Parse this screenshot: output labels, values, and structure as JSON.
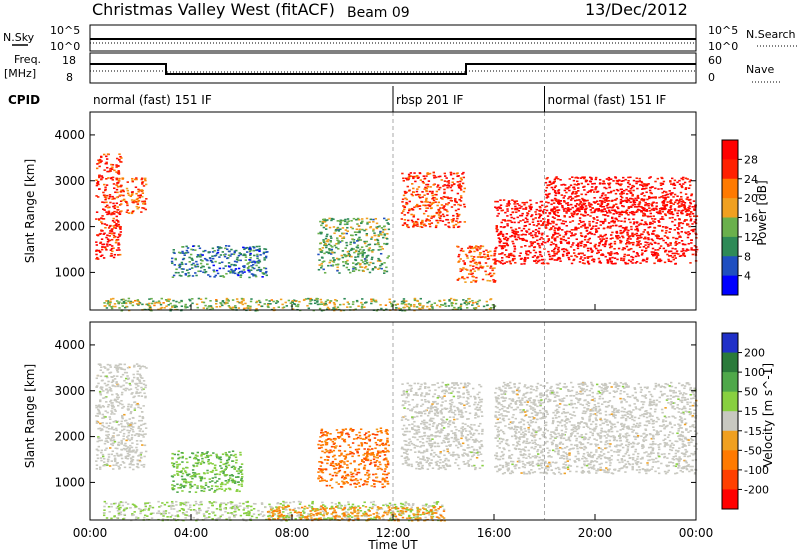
{
  "header": {
    "title": "Christmas Valley West (fitACF)",
    "beam": "Beam 09",
    "date": "13/Dec/2012"
  },
  "aux": {
    "nsky_label": "N.Sky",
    "nsearch_label": "N.Search",
    "freq_label_line1": "Freq.",
    "freq_label_line2": "[MHz]",
    "nave_label": "Nave",
    "cpid_label": "CPID",
    "noise_ticks_left": [
      "10^5",
      "10^0"
    ],
    "noise_ticks_right": [
      "10^5",
      "10^0"
    ],
    "freq_ticks": [
      "18",
      "8"
    ],
    "nave_ticks": [
      "60",
      "0"
    ]
  },
  "cpid_segments": [
    {
      "label": "normal (fast) 151 IF",
      "start_hr": 0
    },
    {
      "label": "rbsp 201 IF",
      "start_hr": 12.0
    },
    {
      "label": "normal (fast) 151 IF",
      "start_hr": 18.0
    }
  ],
  "colors": {
    "power_scale": [
      "#0000ff",
      "#1f4fc0",
      "#2e8a57",
      "#6ab04c",
      "#f0a020",
      "#ff7a00",
      "#ff2000",
      "#ff0000"
    ],
    "velocity_scale": [
      "#2030c8",
      "#2a7a3a",
      "#4fa84a",
      "#88d040",
      "#c8c8c0",
      "#f0a020",
      "#ff7a00",
      "#ff4000",
      "#ff0000"
    ],
    "ground_scatter": "#c8c8c0"
  },
  "chart_data": [
    {
      "type": "heatmap",
      "name": "power",
      "xlabel": "",
      "ylabel": "Slant Range [km]",
      "xlim_hr": [
        0,
        24
      ],
      "ylim_km": [
        180,
        4500
      ],
      "yticks": [
        "4000",
        "3000",
        "2000",
        "1000"
      ],
      "colorbar_label": "Power [dB]",
      "colorbar_ticks": [
        "28",
        "24",
        "20",
        "16",
        "12",
        "8",
        "4"
      ],
      "colorbar_range": [
        0,
        30
      ],
      "regions": [
        {
          "t0": 0.2,
          "t1": 1.2,
          "r0": 1300,
          "r1": 3600,
          "level": 26
        },
        {
          "t0": 1.0,
          "t1": 2.2,
          "r0": 2300,
          "r1": 3100,
          "level": 22
        },
        {
          "t0": 3.2,
          "t1": 7.0,
          "r0": 900,
          "r1": 1600,
          "level": 8
        },
        {
          "t0": 9.0,
          "t1": 11.8,
          "r0": 1000,
          "r1": 2200,
          "level": 12
        },
        {
          "t0": 12.3,
          "t1": 14.8,
          "r0": 2000,
          "r1": 3200,
          "level": 24
        },
        {
          "t0": 14.5,
          "t1": 16.0,
          "r0": 800,
          "r1": 1600,
          "level": 22
        },
        {
          "t0": 16.0,
          "t1": 24.0,
          "r0": 1200,
          "r1": 2600,
          "level": 28
        },
        {
          "t0": 18.0,
          "t1": 23.8,
          "r0": 2300,
          "r1": 3100,
          "level": 28
        },
        {
          "t0": 0.5,
          "t1": 16.0,
          "r0": 180,
          "r1": 450,
          "level": 14
        }
      ]
    },
    {
      "type": "heatmap",
      "name": "velocity",
      "xlabel": "Time UT",
      "ylabel": "Slant Range [km]",
      "xlim_hr": [
        0,
        24
      ],
      "ylim_km": [
        180,
        4500
      ],
      "xticks": [
        "00:00",
        "04:00",
        "08:00",
        "12:00",
        "16:00",
        "20:00",
        "00:00"
      ],
      "yticks": [
        "4000",
        "3000",
        "2000",
        "1000"
      ],
      "colorbar_label": "Velocity [m s^-1]",
      "colorbar_ticks": [
        "200",
        "100",
        "50",
        "15",
        "-15",
        "-50",
        "-100",
        "-200"
      ],
      "colorbar_range": [
        -250,
        250
      ],
      "regions": [
        {
          "t0": 0.2,
          "t1": 2.2,
          "r0": 1300,
          "r1": 3600,
          "velocity": 0
        },
        {
          "t0": 3.2,
          "t1": 6.0,
          "r0": 800,
          "r1": 1700,
          "velocity": 80
        },
        {
          "t0": 9.0,
          "t1": 11.8,
          "r0": 900,
          "r1": 2200,
          "velocity": -120
        },
        {
          "t0": 12.3,
          "t1": 15.5,
          "r0": 1300,
          "r1": 3200,
          "velocity": 0
        },
        {
          "t0": 16.0,
          "t1": 24.0,
          "r0": 1200,
          "r1": 3200,
          "velocity": 0
        },
        {
          "t0": 0.5,
          "t1": 14.0,
          "r0": 180,
          "r1": 600,
          "velocity": 30
        },
        {
          "t0": 7.0,
          "t1": 14.0,
          "r0": 180,
          "r1": 500,
          "velocity": -80
        }
      ]
    }
  ]
}
